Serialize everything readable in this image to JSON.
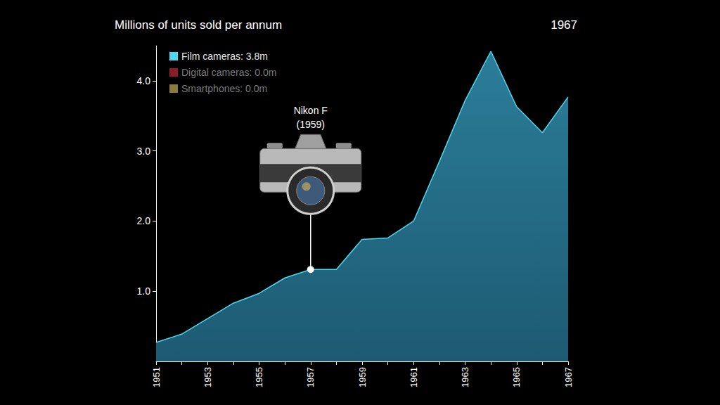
{
  "chart_data": {
    "type": "area",
    "title": "Millions of units sold per annum",
    "subtitle": "1967",
    "categories": [
      "1951",
      null,
      "1953",
      null,
      "1955",
      null,
      "1957",
      null,
      "1959",
      null,
      "1961",
      null,
      "1963",
      null,
      "1965",
      null,
      "1967"
    ],
    "series": [
      {
        "name": "Film cameras: 3.8m",
        "color": "#4fd8ec",
        "values": [
          0.27,
          0.39,
          0.61,
          0.83,
          0.97,
          1.19,
          1.31,
          1.31,
          1.74,
          1.76,
          2.0,
          2.85,
          3.72,
          4.42,
          3.63,
          3.26,
          3.77
        ]
      },
      {
        "name": "Digital cameras: 0.0m",
        "color": "#8b1c2c",
        "values": [
          0,
          0,
          0,
          0,
          0,
          0,
          0,
          0,
          0,
          0,
          0,
          0,
          0,
          0,
          0,
          0,
          0
        ]
      },
      {
        "name": "Smartphones: 0.0m",
        "color": "#8a7a3c",
        "values": [
          0,
          0,
          0,
          0,
          0,
          0,
          0,
          0,
          0,
          0,
          0,
          0,
          0,
          0,
          0,
          0,
          0
        ]
      }
    ],
    "ylim": [
      0,
      4.5
    ],
    "yticks": [
      {
        "value": 1,
        "label": "1.0"
      },
      {
        "value": 2,
        "label": "2.0"
      },
      {
        "value": 3,
        "label": "3.0"
      },
      {
        "value": 4,
        "label": "4.0"
      }
    ],
    "grid": false,
    "legend": "upper left",
    "stacked": true,
    "annotations": [
      {
        "text": "Nikon F (1959)",
        "x": "1957",
        "y": 1.31
      }
    ]
  }
}
